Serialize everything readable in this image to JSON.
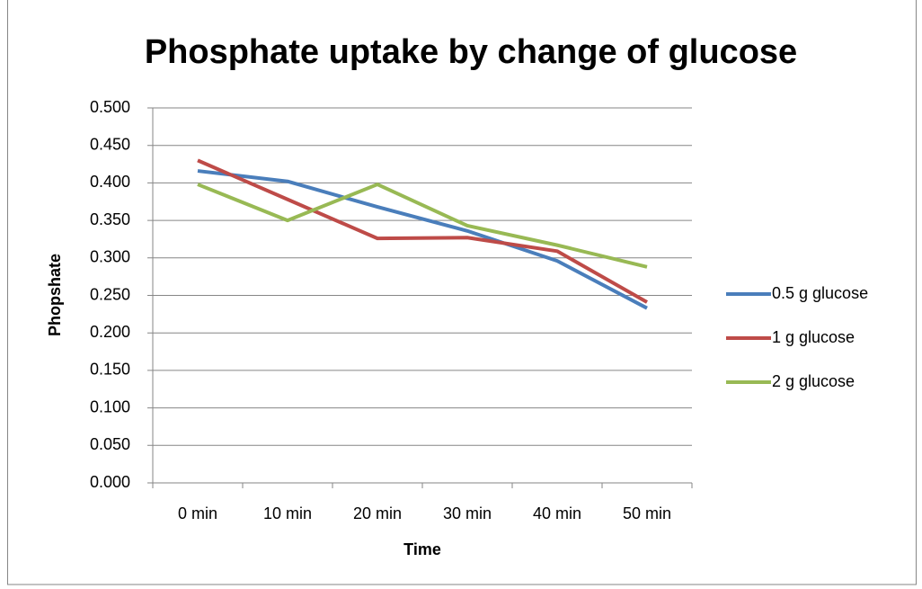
{
  "chart_data": {
    "type": "line",
    "title": "Phosphate uptake by change of glucose",
    "x_label": "Time",
    "y_label": "Phopshate",
    "categories": [
      "0 min",
      "10 min",
      "20 min",
      "30 min",
      "40 min",
      "50 min"
    ],
    "series": [
      {
        "name": "0.5 g glucose",
        "color": "#4a7ebb",
        "values": [
          0.416,
          0.402,
          0.368,
          0.336,
          0.296,
          0.233
        ]
      },
      {
        "name": "1 g glucose",
        "color": "#be4b48",
        "values": [
          0.43,
          0.378,
          0.326,
          0.327,
          0.309,
          0.241
        ]
      },
      {
        "name": "2 g glucose",
        "color": "#98b954",
        "values": [
          0.398,
          0.35,
          0.398,
          0.343,
          0.317,
          0.288
        ]
      }
    ],
    "ylim": [
      0,
      0.5
    ],
    "yticks": [
      {
        "value": 0,
        "label": "0.000"
      },
      {
        "value": 0.05,
        "label": "0.050"
      },
      {
        "value": 0.1,
        "label": "0.100"
      },
      {
        "value": 0.15,
        "label": "0.150"
      },
      {
        "value": 0.2,
        "label": "0.200"
      },
      {
        "value": 0.25,
        "label": "0.250"
      },
      {
        "value": 0.3,
        "label": "0.300"
      },
      {
        "value": 0.35,
        "label": "0.350"
      },
      {
        "value": 0.4,
        "label": "0.400"
      },
      {
        "value": 0.45,
        "label": "0.450"
      },
      {
        "value": 0.5,
        "label": "0.500"
      }
    ],
    "grid": true,
    "legend": "right"
  }
}
